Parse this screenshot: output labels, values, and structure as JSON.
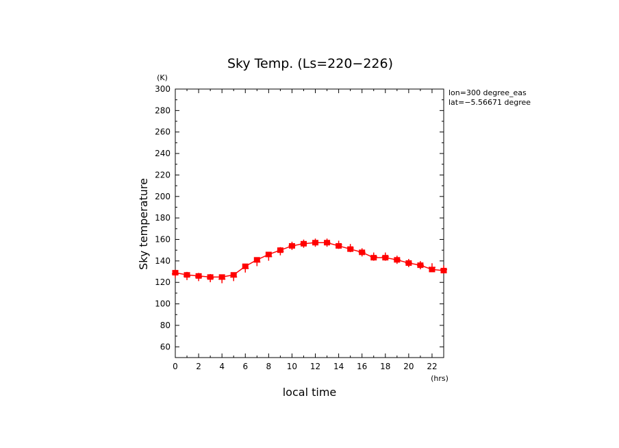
{
  "chart_data": {
    "type": "line",
    "title": "Sky Temp. (Ls=220−226)",
    "xlabel": "local time",
    "ylabel": "Sky temperature",
    "x_unit": "(hrs)",
    "y_unit": "(K)",
    "xlim": [
      0,
      23
    ],
    "ylim": [
      50,
      300
    ],
    "x_ticks": [
      "0",
      "2",
      "4",
      "6",
      "8",
      "10",
      "12",
      "14",
      "16",
      "18",
      "20",
      "22"
    ],
    "y_ticks": [
      "60",
      "80",
      "100",
      "120",
      "140",
      "160",
      "180",
      "200",
      "220",
      "240",
      "260",
      "280",
      "300"
    ],
    "annotations": [
      "lon=300 degree_eas",
      "lat=−5.56671 degree"
    ],
    "grid": false,
    "series_color": "#ff0000",
    "series": [
      {
        "x": [
          0,
          1,
          2,
          3,
          4,
          5,
          6,
          7,
          8,
          9,
          10,
          11,
          12,
          13,
          14,
          15,
          16,
          17,
          18,
          19,
          20,
          21,
          22,
          23
        ],
        "values": [
          129,
          127,
          126,
          125,
          125,
          127,
          135,
          141,
          146,
          150,
          154,
          156,
          157,
          157,
          154,
          151,
          148,
          143,
          143,
          141,
          138,
          136,
          132,
          131
        ],
        "values_cross": [
          128,
          126,
          125,
          124,
          123,
          125,
          133,
          139,
          144,
          149,
          154,
          156,
          157,
          157,
          155,
          152,
          148,
          144,
          144,
          141,
          138,
          136,
          134,
          132
        ]
      }
    ]
  }
}
